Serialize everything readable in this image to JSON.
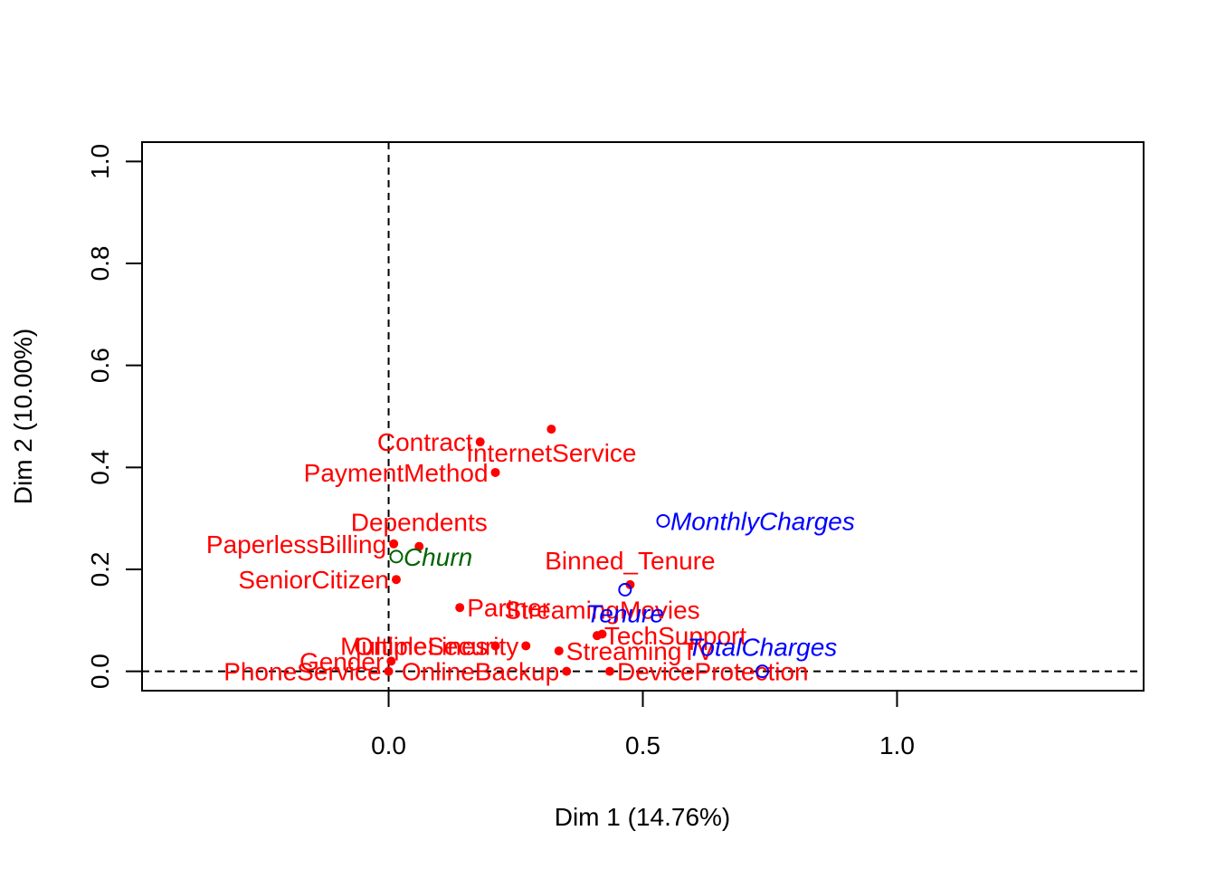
{
  "chart_data": {
    "type": "scatter",
    "title": "",
    "xlabel": "Dim 1 (14.76%)",
    "ylabel": "Dim 2 (10.00%)",
    "xlim": [
      -0.485,
      1.485
    ],
    "ylim": [
      -0.038,
      1.038
    ],
    "xticks": [
      0.0,
      0.5,
      1.0
    ],
    "yticks": [
      0.0,
      0.2,
      0.4,
      0.6,
      0.8,
      1.0
    ],
    "xtick_labels": [
      "0.0",
      "0.5",
      "1.0"
    ],
    "ytick_labels": [
      "0.0",
      "0.2",
      "0.4",
      "0.6",
      "0.8",
      "1.0"
    ],
    "reference_lines": {
      "x": 0,
      "y": 0,
      "style": "dashed"
    },
    "grid": false,
    "colors": {
      "active": "#ff0000",
      "quantitative": "#0000ff",
      "supplementary": "#006400"
    },
    "points": [
      {
        "label": "Contract",
        "x": 0.18,
        "y": 0.45,
        "group": "active",
        "marker": "filled",
        "pos": "left"
      },
      {
        "label": "InternetService",
        "x": 0.32,
        "y": 0.475,
        "group": "active",
        "marker": "filled",
        "pos": "below"
      },
      {
        "label": "PaymentMethod",
        "x": 0.21,
        "y": 0.39,
        "group": "active",
        "marker": "filled",
        "pos": "left"
      },
      {
        "label": "Dependents",
        "x": 0.06,
        "y": 0.245,
        "group": "active",
        "marker": "filled",
        "pos": "above"
      },
      {
        "label": "PaperlessBilling",
        "x": 0.01,
        "y": 0.25,
        "group": "active",
        "marker": "filled",
        "pos": "left"
      },
      {
        "label": "SeniorCitizen",
        "x": 0.015,
        "y": 0.18,
        "group": "active",
        "marker": "filled",
        "pos": "left"
      },
      {
        "label": "Binned_Tenure",
        "x": 0.475,
        "y": 0.17,
        "group": "active",
        "marker": "filled",
        "pos": "above"
      },
      {
        "label": "Partner",
        "x": 0.14,
        "y": 0.125,
        "group": "active",
        "marker": "filled",
        "pos": "right"
      },
      {
        "label": "StreamingMovies",
        "x": 0.42,
        "y": 0.073,
        "group": "active",
        "marker": "filled",
        "pos": "above"
      },
      {
        "label": "TechSupport",
        "x": 0.41,
        "y": 0.07,
        "group": "active",
        "marker": "filled",
        "pos": "right"
      },
      {
        "label": "OnlineSecurity",
        "x": 0.27,
        "y": 0.05,
        "group": "active",
        "marker": "filled",
        "pos": "left"
      },
      {
        "label": "MultipleLines",
        "x": 0.21,
        "y": 0.05,
        "group": "active",
        "marker": "filled",
        "pos": "left"
      },
      {
        "label": "StreamingTV",
        "x": 0.335,
        "y": 0.04,
        "group": "active",
        "marker": "filled",
        "pos": "right"
      },
      {
        "label": "Gender",
        "x": 0.005,
        "y": 0.02,
        "group": "active",
        "marker": "filled",
        "pos": "left"
      },
      {
        "label": "OnlineBackup",
        "x": 0.35,
        "y": 0.0,
        "group": "active",
        "marker": "filled",
        "pos": "left"
      },
      {
        "label": "PhoneService",
        "x": 0.0,
        "y": 0.0,
        "group": "active",
        "marker": "filled",
        "pos": "left"
      },
      {
        "label": "DeviceProtection",
        "x": 0.435,
        "y": 0.0,
        "group": "active",
        "marker": "filled",
        "pos": "right"
      },
      {
        "label": "Churn",
        "x": 0.015,
        "y": 0.225,
        "group": "supplementary",
        "marker": "open",
        "pos": "right"
      },
      {
        "label": "MonthlyCharges",
        "x": 0.54,
        "y": 0.295,
        "group": "quantitative",
        "marker": "open",
        "pos": "right"
      },
      {
        "label": "Tenure",
        "x": 0.465,
        "y": 0.16,
        "group": "quantitative",
        "marker": "open",
        "pos": "below"
      },
      {
        "label": "TotalCharges",
        "x": 0.735,
        "y": 0.0,
        "group": "quantitative",
        "marker": "open",
        "pos": "above"
      }
    ]
  }
}
